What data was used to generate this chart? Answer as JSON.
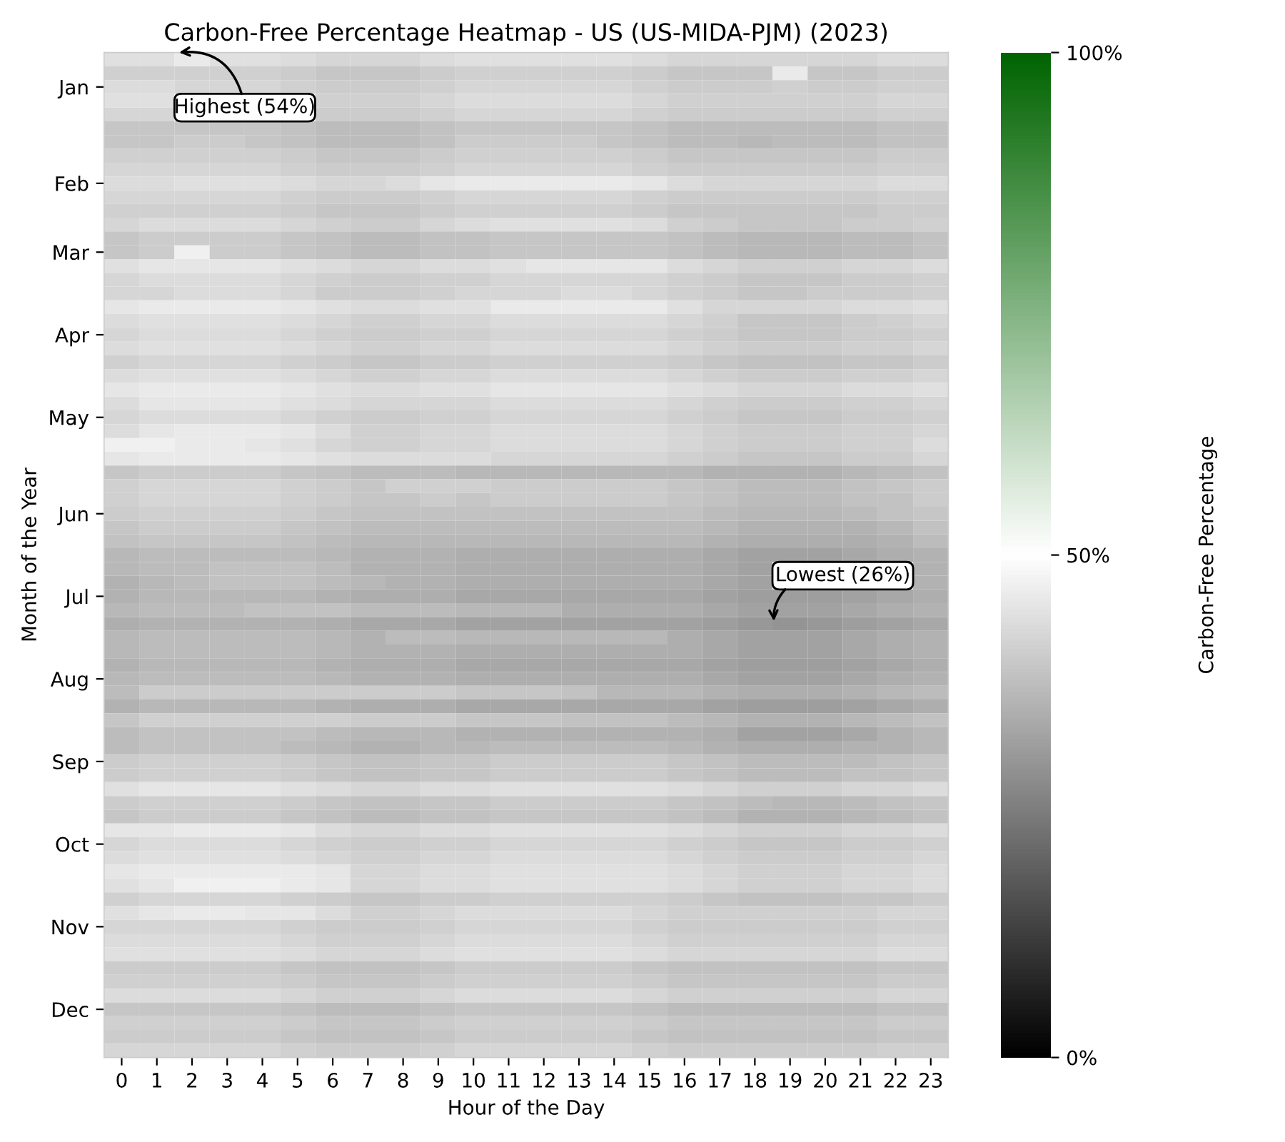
{
  "chart_data": {
    "type": "heatmap",
    "title": "Carbon-Free Percentage Heatmap - US (US-MIDA-PJM) (2023)",
    "xlabel": "Hour of the Day",
    "ylabel": "Month of the Year",
    "clabel": "Carbon-Free Percentage",
    "categories": [
      "0",
      "1",
      "2",
      "3",
      "4",
      "5",
      "6",
      "7",
      "8",
      "9",
      "10",
      "11",
      "12",
      "13",
      "14",
      "15",
      "16",
      "17",
      "18",
      "19",
      "20",
      "21",
      "22",
      "23"
    ],
    "y_categories": [
      null,
      null,
      "Jan",
      null,
      null,
      null,
      null,
      null,
      null,
      "Feb",
      null,
      null,
      null,
      null,
      "Mar",
      null,
      null,
      null,
      null,
      null,
      "Apr",
      null,
      null,
      null,
      null,
      null,
      "May",
      null,
      null,
      null,
      null,
      null,
      null,
      "Jun",
      null,
      null,
      null,
      null,
      null,
      "Jul",
      null,
      null,
      null,
      null,
      null,
      "Aug",
      null,
      null,
      null,
      null,
      null,
      "Sep",
      null,
      null,
      null,
      null,
      null,
      "Oct",
      null,
      null,
      null,
      null,
      null,
      "Nov",
      null,
      null,
      null,
      null,
      null,
      "Dec",
      null,
      null,
      null
    ],
    "colors": [
      "#000000",
      "#ffffff",
      "#006400"
    ],
    "clim": [
      0,
      100
    ],
    "cticks": [
      {
        "value": 0,
        "label": "0%"
      },
      {
        "value": 50,
        "label": "50%"
      },
      {
        "value": 100,
        "label": "100%"
      }
    ],
    "annotations": [
      "Highest (54%)",
      "Lowest (26%)"
    ],
    "cells": [
      [
        44,
        44,
        46,
        44,
        44,
        43,
        42,
        42,
        42,
        43,
        44,
        44,
        44,
        44,
        44,
        43,
        42,
        42,
        42,
        42,
        42,
        42,
        43,
        43
      ],
      [
        41,
        41,
        41,
        41,
        41,
        40,
        39,
        39,
        39,
        40,
        41,
        41,
        41,
        41,
        41,
        40,
        39,
        39,
        39,
        46,
        39,
        39,
        40,
        40
      ],
      [
        43,
        43,
        42,
        42,
        42,
        41,
        40,
        40,
        40,
        41,
        42,
        42,
        42,
        42,
        42,
        41,
        40,
        40,
        40,
        41,
        40,
        40,
        41,
        41
      ],
      [
        44,
        44,
        null,
        null,
        null,
        null,
        41,
        41,
        41,
        42,
        43,
        43,
        43,
        43,
        43,
        42,
        41,
        41,
        41,
        41,
        41,
        41,
        42,
        42
      ],
      [
        42,
        42,
        null,
        null,
        null,
        null,
        40,
        40,
        40,
        41,
        42,
        42,
        42,
        42,
        42,
        41,
        40,
        40,
        40,
        40,
        40,
        40,
        41,
        41
      ],
      [
        39,
        39,
        39,
        39,
        39,
        38,
        37,
        37,
        37,
        38,
        39,
        39,
        39,
        39,
        39,
        38,
        37,
        37,
        37,
        37,
        37,
        37,
        38,
        38
      ],
      [
        39,
        39,
        40,
        40,
        39,
        38,
        37,
        37,
        37,
        38,
        40,
        40,
        40,
        40,
        39,
        38,
        37,
        37,
        36,
        37,
        37,
        37,
        38,
        38
      ],
      [
        41,
        41,
        41,
        41,
        41,
        40,
        39,
        39,
        39,
        40,
        41,
        41,
        41,
        41,
        41,
        40,
        39,
        39,
        39,
        39,
        39,
        39,
        40,
        40
      ],
      [
        42,
        42,
        42,
        42,
        42,
        41,
        40,
        40,
        40,
        41,
        42,
        42,
        42,
        42,
        42,
        41,
        40,
        40,
        40,
        40,
        40,
        40,
        41,
        41
      ],
      [
        43,
        43,
        44,
        44,
        44,
        43,
        42,
        42,
        43,
        45,
        46,
        46,
        46,
        46,
        46,
        45,
        43,
        42,
        42,
        42,
        42,
        42,
        43,
        43
      ],
      [
        42,
        42,
        42,
        42,
        42,
        41,
        40,
        40,
        40,
        41,
        42,
        42,
        42,
        42,
        42,
        41,
        40,
        40,
        40,
        40,
        40,
        40,
        41,
        41
      ],
      [
        41,
        41,
        41,
        41,
        41,
        40,
        39,
        39,
        39,
        40,
        41,
        41,
        41,
        41,
        41,
        40,
        39,
        39,
        39,
        39,
        39,
        39,
        40,
        40
      ],
      [
        42,
        43,
        43,
        43,
        43,
        42,
        41,
        40,
        40,
        42,
        43,
        44,
        44,
        44,
        44,
        43,
        41,
        40,
        39,
        39,
        39,
        40,
        40,
        41
      ],
      [
        39,
        40,
        40,
        40,
        40,
        39,
        38,
        37,
        37,
        38,
        38,
        39,
        39,
        39,
        39,
        39,
        38,
        37,
        36,
        36,
        36,
        37,
        37,
        38
      ],
      [
        39,
        40,
        47,
        40,
        40,
        39,
        38,
        37,
        37,
        38,
        38,
        39,
        39,
        39,
        39,
        39,
        38,
        37,
        36,
        36,
        36,
        37,
        37,
        38
      ],
      [
        44,
        45,
        45,
        45,
        45,
        44,
        43,
        42,
        42,
        43,
        43,
        44,
        45,
        45,
        45,
        45,
        43,
        42,
        41,
        41,
        41,
        42,
        42,
        43
      ],
      [
        42,
        43,
        43,
        43,
        43,
        42,
        41,
        40,
        40,
        41,
        41,
        42,
        42,
        42,
        42,
        42,
        41,
        40,
        39,
        39,
        39,
        40,
        40,
        41
      ],
      [
        42,
        42,
        43,
        43,
        43,
        42,
        40,
        40,
        40,
        41,
        42,
        42,
        42,
        43,
        43,
        42,
        41,
        40,
        39,
        39,
        40,
        40,
        40,
        41
      ],
      [
        45,
        46,
        46,
        46,
        46,
        45,
        44,
        43,
        43,
        44,
        44,
        46,
        46,
        46,
        46,
        46,
        44,
        42,
        42,
        42,
        42,
        43,
        43,
        44
      ],
      [
        43,
        44,
        44,
        44,
        44,
        43,
        42,
        41,
        41,
        42,
        42,
        43,
        43,
        43,
        43,
        43,
        42,
        41,
        39,
        39,
        39,
        40,
        41,
        42
      ],
      [
        42,
        43,
        43,
        43,
        43,
        42,
        41,
        40,
        40,
        41,
        41,
        42,
        42,
        42,
        42,
        42,
        41,
        40,
        39,
        39,
        39,
        40,
        40,
        41
      ],
      [
        43,
        44,
        44,
        44,
        44,
        43,
        42,
        41,
        41,
        42,
        42,
        43,
        43,
        43,
        43,
        43,
        42,
        41,
        40,
        40,
        40,
        41,
        41,
        42
      ],
      [
        41,
        42,
        42,
        42,
        42,
        41,
        40,
        39,
        39,
        40,
        40,
        41,
        41,
        41,
        41,
        41,
        40,
        39,
        38,
        38,
        38,
        39,
        39,
        40
      ],
      [
        43,
        44,
        44,
        44,
        44,
        43,
        42,
        41,
        41,
        42,
        42,
        43,
        43,
        43,
        43,
        43,
        42,
        41,
        40,
        40,
        40,
        41,
        41,
        42
      ],
      [
        45,
        46,
        46,
        46,
        46,
        45,
        44,
        43,
        43,
        44,
        44,
        45,
        45,
        45,
        45,
        45,
        44,
        43,
        42,
        42,
        42,
        43,
        43,
        44
      ],
      [
        43,
        45,
        45,
        45,
        45,
        44,
        43,
        42,
        42,
        42,
        42,
        43,
        43,
        43,
        43,
        43,
        42,
        41,
        40,
        40,
        40,
        41,
        41,
        42
      ],
      [
        42,
        43,
        43,
        43,
        43,
        42,
        41,
        40,
        40,
        41,
        41,
        42,
        42,
        42,
        42,
        42,
        41,
        40,
        39,
        39,
        39,
        40,
        40,
        41
      ],
      [
        43,
        45,
        46,
        46,
        46,
        45,
        43,
        41,
        41,
        42,
        42,
        43,
        43,
        43,
        43,
        43,
        42,
        41,
        40,
        40,
        40,
        41,
        41,
        42
      ],
      [
        47,
        47,
        46,
        46,
        45,
        44,
        42,
        41,
        41,
        42,
        42,
        43,
        43,
        43,
        43,
        43,
        42,
        41,
        40,
        40,
        40,
        41,
        41,
        43
      ],
      [
        45,
        46,
        46,
        46,
        46,
        45,
        44,
        43,
        43,
        43,
        43,
        42,
        42,
        42,
        42,
        42,
        41,
        40,
        39,
        39,
        39,
        40,
        40,
        42
      ],
      [
        39,
        40,
        40,
        40,
        40,
        39,
        38,
        37,
        37,
        37,
        36,
        36,
        36,
        36,
        36,
        36,
        36,
        35,
        35,
        35,
        35,
        36,
        37,
        38
      ],
      [
        41,
        42,
        42,
        42,
        42,
        41,
        40,
        39,
        41,
        41,
        41,
        40,
        40,
        40,
        40,
        40,
        39,
        38,
        37,
        37,
        37,
        38,
        39,
        40
      ],
      [
        41,
        42,
        42,
        42,
        42,
        41,
        40,
        39,
        39,
        40,
        39,
        40,
        40,
        40,
        40,
        40,
        39,
        38,
        37,
        37,
        37,
        38,
        38,
        40
      ],
      [
        40,
        41,
        41,
        41,
        41,
        40,
        39,
        38,
        38,
        38,
        38,
        38,
        38,
        38,
        38,
        38,
        38,
        37,
        36,
        36,
        36,
        37,
        38,
        39
      ],
      [
        39,
        40,
        40,
        40,
        40,
        39,
        38,
        37,
        37,
        37,
        37,
        37,
        37,
        37,
        37,
        37,
        37,
        36,
        35,
        35,
        35,
        35,
        36,
        38
      ],
      [
        38,
        39,
        39,
        39,
        39,
        38,
        37,
        36,
        36,
        36,
        36,
        36,
        36,
        36,
        36,
        36,
        36,
        35,
        34,
        34,
        34,
        34,
        35,
        37
      ],
      [
        36,
        37,
        37,
        37,
        37,
        37,
        36,
        35,
        35,
        35,
        34,
        34,
        34,
        34,
        34,
        34,
        34,
        33,
        32,
        32,
        32,
        33,
        34,
        35
      ],
      [
        36,
        37,
        37,
        38,
        38,
        38,
        37,
        35,
        35,
        35,
        34,
        34,
        34,
        34,
        34,
        34,
        34,
        33,
        32,
        null,
        null,
        null,
        null,
        35
      ],
      [
        35,
        36,
        37,
        38,
        38,
        38,
        37,
        36,
        35,
        35,
        34,
        34,
        34,
        34,
        34,
        34,
        34,
        33,
        32,
        null,
        null,
        null,
        null,
        35
      ],
      [
        35,
        36,
        36,
        36,
        36,
        36,
        35,
        34,
        34,
        34,
        33,
        33,
        33,
        33,
        33,
        33,
        33,
        32,
        31,
        31,
        31,
        32,
        33,
        34
      ],
      [
        36,
        37,
        37,
        37,
        38,
        38,
        38,
        37,
        37,
        37,
        36,
        36,
        36,
        34,
        34,
        34,
        34,
        33,
        32,
        32,
        32,
        33,
        34,
        35
      ],
      [
        34,
        35,
        35,
        35,
        35,
        35,
        34,
        33,
        33,
        33,
        32,
        32,
        32,
        32,
        32,
        32,
        32,
        31,
        30,
        29,
        30,
        31,
        32,
        33
      ],
      [
        36,
        37,
        37,
        37,
        37,
        37,
        36,
        35,
        37,
        37,
        36,
        36,
        36,
        36,
        36,
        36,
        34,
        33,
        32,
        32,
        32,
        33,
        34,
        35
      ],
      [
        36,
        37,
        37,
        37,
        37,
        37,
        36,
        35,
        35,
        35,
        34,
        34,
        34,
        34,
        34,
        34,
        34,
        33,
        32,
        32,
        32,
        33,
        34,
        35
      ],
      [
        35,
        36,
        36,
        36,
        36,
        36,
        35,
        34,
        34,
        34,
        33,
        33,
        33,
        33,
        33,
        33,
        33,
        32,
        31,
        31,
        31,
        32,
        33,
        34
      ],
      [
        36,
        37,
        37,
        37,
        37,
        37,
        36,
        35,
        35,
        35,
        34,
        34,
        34,
        34,
        34,
        34,
        34,
        33,
        32,
        32,
        32,
        33,
        34,
        35
      ],
      [
        37,
        40,
        40,
        40,
        40,
        40,
        40,
        40,
        40,
        40,
        39,
        39,
        39,
        38,
        36,
        36,
        36,
        35,
        34,
        34,
        34,
        35,
        36,
        37
      ],
      [
        35,
        36,
        36,
        36,
        36,
        36,
        35,
        34,
        34,
        34,
        33,
        33,
        33,
        33,
        33,
        33,
        33,
        32,
        31,
        31,
        31,
        32,
        33,
        34
      ],
      [
        39,
        41,
        41,
        41,
        41,
        41,
        41,
        40,
        40,
        40,
        39,
        39,
        39,
        38,
        38,
        38,
        37,
        36,
        35,
        35,
        35,
        36,
        37,
        38
      ],
      [
        37,
        38,
        38,
        38,
        38,
        38,
        37,
        36,
        36,
        36,
        35,
        35,
        35,
        35,
        35,
        35,
        35,
        34,
        32,
        32,
        32,
        33,
        35,
        36
      ],
      [
        37,
        38,
        38,
        38,
        38,
        37,
        36,
        35,
        35,
        36,
        36,
        37,
        37,
        37,
        37,
        37,
        36,
        35,
        34,
        34,
        34,
        35,
        35,
        36
      ],
      [
        40,
        41,
        41,
        41,
        41,
        40,
        39,
        38,
        38,
        39,
        39,
        40,
        40,
        40,
        40,
        40,
        39,
        38,
        37,
        37,
        37,
        37,
        38,
        39
      ],
      [
        40,
        41,
        41,
        41,
        41,
        40,
        39,
        38,
        38,
        39,
        39,
        40,
        40,
        40,
        40,
        40,
        39,
        38,
        37,
        37,
        37,
        38,
        38,
        39
      ],
      [
        44,
        45,
        45,
        45,
        45,
        44,
        43,
        42,
        42,
        43,
        43,
        44,
        44,
        44,
        44,
        44,
        43,
        42,
        41,
        41,
        41,
        42,
        42,
        43
      ],
      [
        40,
        41,
        41,
        41,
        41,
        40,
        39,
        38,
        38,
        39,
        39,
        40,
        40,
        40,
        40,
        40,
        39,
        38,
        37,
        36,
        36,
        37,
        38,
        39
      ],
      [
        39,
        40,
        40,
        40,
        40,
        39,
        38,
        37,
        37,
        38,
        38,
        39,
        39,
        39,
        39,
        39,
        38,
        37,
        35,
        35,
        35,
        36,
        37,
        38
      ],
      [
        45,
        45,
        46,
        46,
        46,
        45,
        43,
        42,
        42,
        43,
        43,
        44,
        44,
        44,
        44,
        44,
        43,
        42,
        41,
        41,
        41,
        42,
        42,
        43
      ],
      [
        42,
        43,
        43,
        43,
        43,
        42,
        41,
        40,
        40,
        41,
        41,
        42,
        42,
        42,
        42,
        42,
        41,
        40,
        39,
        39,
        39,
        40,
        40,
        41
      ],
      [
        43,
        44,
        44,
        44,
        44,
        43,
        42,
        41,
        41,
        42,
        42,
        43,
        43,
        43,
        43,
        43,
        42,
        41,
        40,
        40,
        40,
        41,
        41,
        42
      ],
      [
        45,
        46,
        46,
        46,
        46,
        46,
        45,
        42,
        42,
        43,
        43,
        44,
        44,
        44,
        44,
        44,
        43,
        42,
        41,
        41,
        41,
        42,
        42,
        43
      ],
      [
        44,
        45,
        47,
        47,
        47,
        46,
        45,
        42,
        42,
        43,
        43,
        44,
        44,
        44,
        44,
        44,
        43,
        42,
        41,
        41,
        41,
        42,
        42,
        43
      ],
      [
        41,
        42,
        42,
        42,
        42,
        41,
        40,
        39,
        39,
        40,
        40,
        41,
        41,
        41,
        41,
        41,
        40,
        39,
        38,
        38,
        38,
        39,
        39,
        40
      ],
      [
        44,
        45,
        46,
        46,
        45,
        45,
        43,
        41,
        41,
        42,
        43,
        43,
        43,
        43,
        43,
        42,
        41,
        41,
        41,
        41,
        41,
        41,
        42,
        42
      ],
      [
        42,
        42,
        42,
        42,
        42,
        41,
        40,
        40,
        40,
        41,
        42,
        42,
        42,
        42,
        42,
        41,
        40,
        40,
        40,
        40,
        40,
        40,
        41,
        41
      ],
      [
        43,
        43,
        43,
        43,
        43,
        42,
        41,
        41,
        41,
        42,
        43,
        43,
        43,
        43,
        43,
        42,
        41,
        41,
        41,
        41,
        41,
        41,
        42,
        42
      ],
      [
        44,
        44,
        44,
        44,
        44,
        43,
        42,
        42,
        42,
        43,
        44,
        44,
        44,
        44,
        44,
        43,
        42,
        42,
        42,
        42,
        42,
        42,
        43,
        43
      ],
      [
        40,
        40,
        40,
        40,
        40,
        39,
        38,
        38,
        38,
        39,
        40,
        40,
        40,
        40,
        40,
        39,
        38,
        38,
        38,
        38,
        38,
        38,
        39,
        39
      ],
      [
        41,
        41,
        41,
        41,
        41,
        40,
        39,
        39,
        39,
        40,
        41,
        41,
        41,
        41,
        41,
        40,
        39,
        39,
        39,
        39,
        39,
        39,
        40,
        40
      ],
      [
        43,
        43,
        43,
        43,
        43,
        42,
        41,
        41,
        41,
        42,
        43,
        43,
        43,
        43,
        43,
        42,
        41,
        41,
        41,
        41,
        41,
        41,
        42,
        42
      ],
      [
        39,
        39,
        39,
        39,
        39,
        38,
        37,
        37,
        37,
        38,
        39,
        39,
        39,
        39,
        39,
        38,
        37,
        37,
        37,
        37,
        37,
        37,
        38,
        38
      ],
      [
        41,
        41,
        41,
        41,
        41,
        40,
        39,
        39,
        39,
        40,
        41,
        41,
        41,
        41,
        41,
        40,
        39,
        39,
        39,
        39,
        39,
        39,
        40,
        40
      ],
      [
        40,
        40,
        40,
        40,
        40,
        39,
        38,
        38,
        38,
        39,
        40,
        40,
        40,
        40,
        40,
        39,
        38,
        38,
        38,
        38,
        38,
        38,
        39,
        39
      ],
      [
        42,
        42,
        42,
        42,
        42,
        41,
        40,
        40,
        40,
        41,
        42,
        42,
        42,
        42,
        42,
        41,
        40,
        40,
        40,
        40,
        40,
        40,
        41,
        41
      ]
    ]
  }
}
